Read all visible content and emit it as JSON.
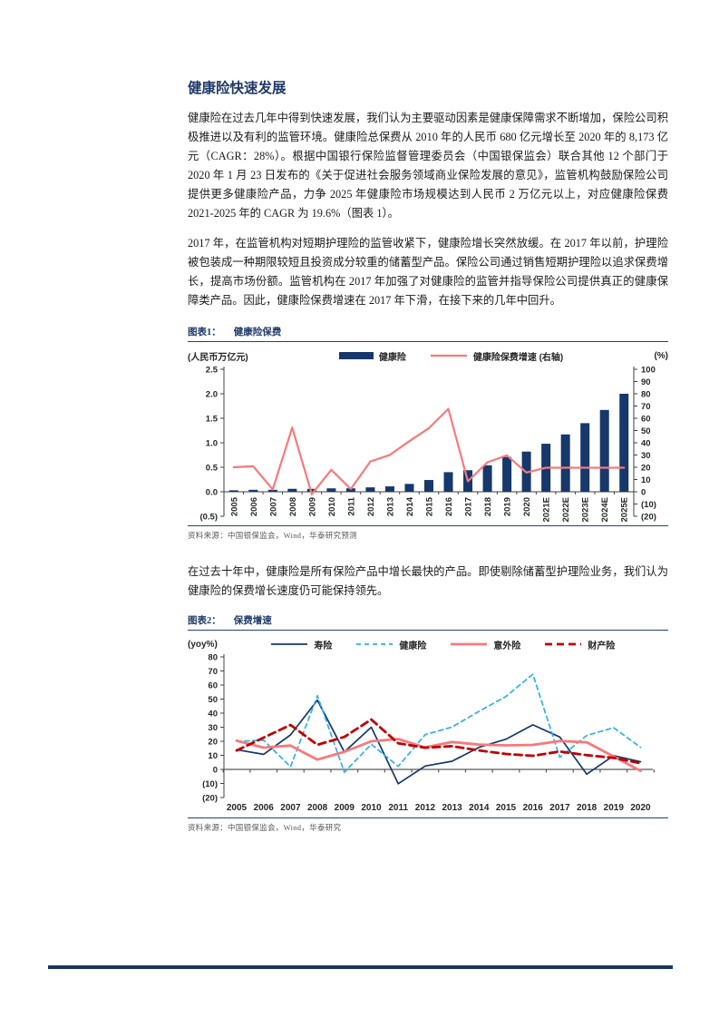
{
  "page": {
    "title": "健康险快速发展",
    "paragraphs": [
      "健康险在过去几年中得到快速发展，我们认为主要驱动因素是健康保障需求不断增加，保险公司积极推进以及有利的监管环境。健康险总保费从 2010 年的人民币 680 亿元增长至 2020 年的 8,173 亿元（CAGR：28%）。根据中国银行保险监督管理委员会（中国银保监会）联合其他 12 个部门于 2020 年 1 月 23 日发布的《关于促进社会服务领域商业保险发展的意见》，监管机构鼓励保险公司提供更多健康险产品，力争 2025 年健康险市场规模达到人民币 2 万亿元以上，对应健康险保费 2021-2025 年的 CAGR 为 19.6%（图表 1）。",
      "2017 年，在监管机构对短期护理险的监管收紧下，健康险增长突然放缓。在 2017 年以前，护理险被包装成一种期限较短且投资成分较重的储蓄型产品。保险公司通过销售短期护理险以追求保费增长，提高市场份额。监管机构在 2017 年加强了对健康险的监管并指导保险公司提供真正的健康保障类产品。因此，健康险保费增速在 2017 年下滑，在接下来的几年中回升。",
      "在过去十年中，健康险是所有保险产品中增长最快的产品。即使剔除储蓄型护理险业务，我们认为健康险的保费增长速度仍可能保持领先。"
    ]
  },
  "colors": {
    "navy": "#1F3A68",
    "bar_navy": "#16386B",
    "salmon": "#F8797B",
    "light_blue": "#2FB0E8",
    "dark_red": "#C00000",
    "rule": "#24427E",
    "footer": "#17375E",
    "source_gray": "#595959"
  },
  "figures": [
    {
      "label": "图表1：",
      "title": "健康险保费",
      "unit_left": "(人民币万亿元)",
      "unit_right": "(%)",
      "source": "资料来源：中国银保监会，Wind，华泰研究预测"
    },
    {
      "label": "图表2：",
      "title": "保费增速",
      "unit_left": "(yoy%)",
      "source": "资料来源：中国银保监会，Wind，华泰研究"
    }
  ],
  "chart_data": [
    {
      "type": "bar",
      "title": "健康险保费",
      "categories": [
        "2005",
        "2006",
        "2007",
        "2008",
        "2009",
        "2010",
        "2011",
        "2012",
        "2013",
        "2014",
        "2015",
        "2016",
        "2017",
        "2018",
        "2019",
        "2020",
        "2021E",
        "2022E",
        "2023E",
        "2024E",
        "2025E"
      ],
      "series": [
        {
          "key": "health-premium",
          "name": "健康险",
          "plot": "bar",
          "axis": "left",
          "color": "#16386B",
          "values": [
            0.03,
            0.04,
            0.04,
            0.06,
            0.06,
            0.07,
            0.07,
            0.09,
            0.11,
            0.16,
            0.24,
            0.4,
            0.44,
            0.54,
            0.71,
            0.82,
            0.98,
            1.17,
            1.4,
            1.67,
            2.0
          ]
        },
        {
          "key": "health-premium-growth",
          "name": "健康险保费增速 (右轴)",
          "plot": "line",
          "axis": "right",
          "color": "#F8797B",
          "width": 2.2,
          "dash": "",
          "values": [
            20.0,
            20.8,
            1.9,
            52.4,
            -2.0,
            17.9,
            2.2,
            24.7,
            30.1,
            41.3,
            51.9,
            67.7,
            8.6,
            24.1,
            29.7,
            15.7,
            19.6,
            19.6,
            19.6,
            19.6,
            19.6
          ]
        }
      ],
      "left_axis": {
        "label": "(人民币万亿元)",
        "max": 2.5,
        "min": -0.5,
        "ticks": [
          "2.5",
          "2.0",
          "1.5",
          "1.0",
          "0.5",
          "0.0",
          "(0.5)"
        ]
      },
      "right_axis": {
        "label": "(%)",
        "max": 100,
        "min": -20,
        "ticks": [
          "100",
          "90",
          "80",
          "70",
          "60",
          "50",
          "40",
          "30",
          "20",
          "10",
          "0",
          "(10)",
          "(20)"
        ]
      },
      "legend_position": "top",
      "grid": false
    },
    {
      "type": "line",
      "title": "保费增速",
      "ylabel": "(yoy%)",
      "categories": [
        "2005",
        "2006",
        "2007",
        "2008",
        "2009",
        "2010",
        "2011",
        "2012",
        "2013",
        "2014",
        "2015",
        "2016",
        "2017",
        "2018",
        "2019",
        "2020"
      ],
      "series": [
        {
          "key": "life",
          "name": "寿险",
          "color": "#16386B",
          "dash": "",
          "width": 1.7,
          "values": [
            14.0,
            10.7,
            24.5,
            49.2,
            12.4,
            30.0,
            -10.2,
            2.4,
            5.8,
            15.7,
            21.5,
            31.7,
            23.0,
            -3.4,
            9.8,
            5.4
          ]
        },
        {
          "key": "health",
          "name": "健康险",
          "color": "#2FB0E8",
          "dash": "5 4",
          "width": 1.7,
          "values": [
            20.0,
            20.8,
            1.9,
            52.4,
            -2.0,
            17.9,
            2.2,
            24.7,
            30.1,
            41.3,
            51.9,
            67.7,
            8.6,
            24.1,
            29.7,
            15.7
          ]
        },
        {
          "key": "accident",
          "name": "意外险",
          "color": "#F8797B",
          "dash": "",
          "width": 2.8,
          "values": [
            20.4,
            15.5,
            17.0,
            7.0,
            12.5,
            20.0,
            21.6,
            15.6,
            19.5,
            17.6,
            17.1,
            17.4,
            20.2,
            19.3,
            9.2,
            -1.0
          ]
        },
        {
          "key": "property",
          "name": "财产险",
          "color": "#C00000",
          "dash": "8 5",
          "width": 2.8,
          "values": [
            13.4,
            22.6,
            31.6,
            17.5,
            23.1,
            35.5,
            18.6,
            15.4,
            16.5,
            13.5,
            11.0,
            9.7,
            12.7,
            10.1,
            8.2,
            4.4
          ]
        }
      ],
      "y_axis": {
        "max": 80,
        "min": -20,
        "ticks": [
          "80",
          "70",
          "60",
          "50",
          "40",
          "30",
          "20",
          "10",
          "0",
          "(10)",
          "(20)"
        ]
      },
      "legend_position": "top",
      "grid": false
    }
  ]
}
